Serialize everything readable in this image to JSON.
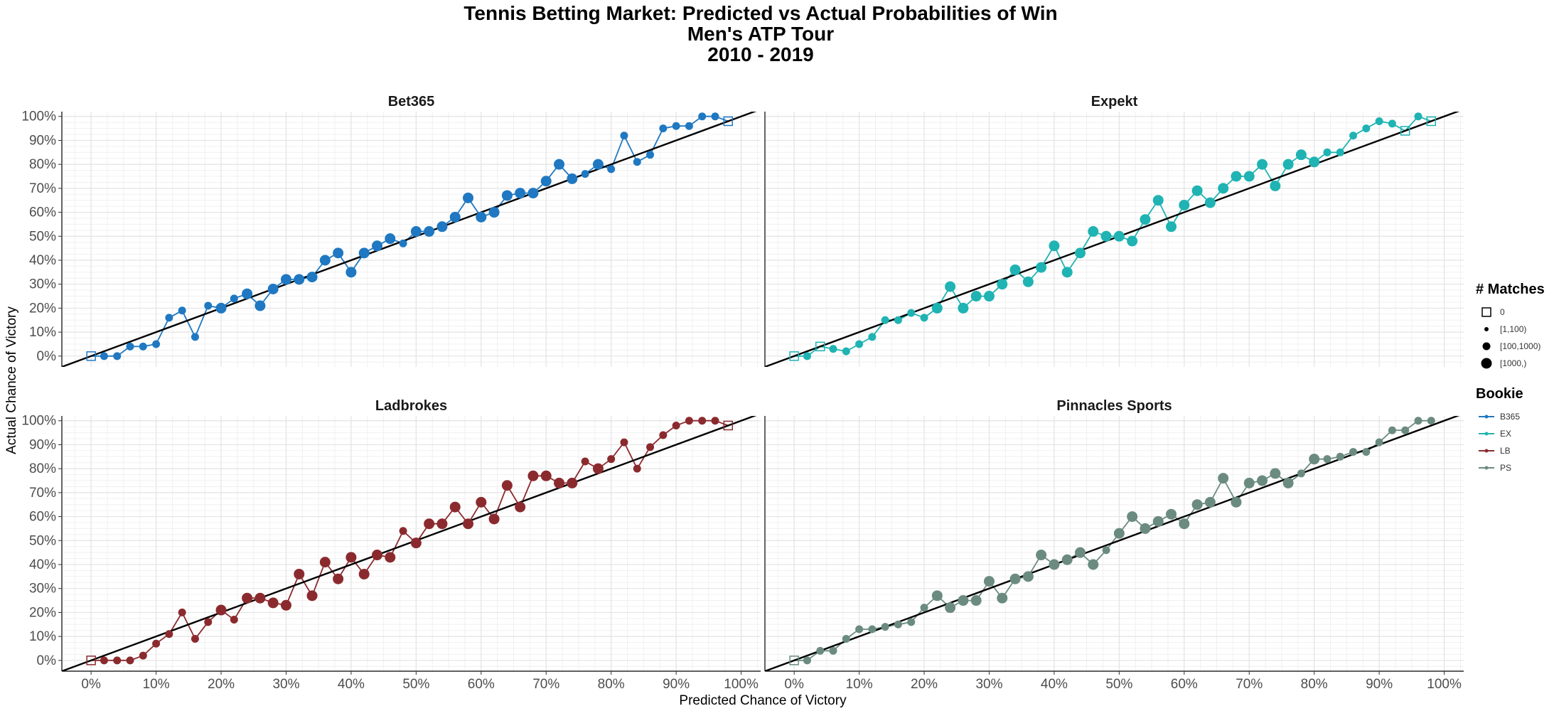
{
  "title": {
    "line1": "Tennis Betting Market: Predicted vs Actual Probabilities of Win",
    "line2": "Men's ATP Tour",
    "line3": "2010 - 2019"
  },
  "legend": {
    "size_title": "# Matches",
    "size_levels": [
      {
        "label": "0",
        "shape": "square"
      },
      {
        "label": "[1,100)",
        "shape": "small-dot"
      },
      {
        "label": "[100,1000)",
        "shape": "medium-dot"
      },
      {
        "label": "[1000,)",
        "shape": "large-dot"
      }
    ],
    "bookie_title": "Bookie",
    "bookies": [
      {
        "label": "B365",
        "color": "#1f78c1"
      },
      {
        "label": "EX",
        "color": "#1fb3b3"
      },
      {
        "label": "LB",
        "color": "#8b2a2e"
      },
      {
        "label": "PS",
        "color": "#6b8b80"
      }
    ]
  },
  "chart_data": {
    "type": "scatter",
    "xlabel": "Predicted Chance of Victory",
    "ylabel": "Actual Chance of Victory",
    "xlim": [
      0,
      100
    ],
    "ylim": [
      0,
      100
    ],
    "x_ticks": [
      "0%",
      "10%",
      "20%",
      "30%",
      "40%",
      "50%",
      "60%",
      "70%",
      "80%",
      "90%",
      "100%"
    ],
    "y_ticks": [
      "0%",
      "10%",
      "20%",
      "30%",
      "40%",
      "50%",
      "60%",
      "70%",
      "80%",
      "90%",
      "100%"
    ],
    "reference_line": "y = x",
    "grid": true,
    "x": [
      0,
      2,
      4,
      6,
      8,
      10,
      12,
      14,
      16,
      18,
      20,
      22,
      24,
      26,
      28,
      30,
      32,
      34,
      36,
      38,
      40,
      42,
      44,
      46,
      48,
      50,
      52,
      54,
      56,
      58,
      60,
      62,
      64,
      66,
      68,
      70,
      72,
      74,
      76,
      78,
      80,
      82,
      84,
      86,
      88,
      90,
      92,
      94,
      96,
      98
    ],
    "panels": [
      {
        "name": "Bet365",
        "bookie": "B365",
        "color": "#1f78c1",
        "y": [
          0,
          0,
          0,
          4,
          4,
          5,
          16,
          19,
          8,
          21,
          20,
          24,
          26,
          21,
          28,
          32,
          32,
          33,
          40,
          43,
          35,
          43,
          46,
          49,
          47,
          52,
          52,
          54,
          58,
          66,
          58,
          60,
          67,
          68,
          68,
          73,
          80,
          74,
          76,
          80,
          78,
          92,
          81,
          84,
          95,
          96,
          96,
          100,
          100,
          98
        ],
        "size": [
          0,
          1,
          1,
          1,
          1,
          1,
          1,
          1,
          1,
          1,
          2,
          1,
          2,
          2,
          2,
          2,
          2,
          2,
          2,
          2,
          2,
          2,
          2,
          2,
          1,
          2,
          2,
          2,
          2,
          2,
          2,
          2,
          2,
          2,
          2,
          2,
          2,
          2,
          1,
          2,
          1,
          1,
          1,
          1,
          1,
          1,
          1,
          1,
          1,
          0
        ]
      },
      {
        "name": "Expekt",
        "bookie": "EX",
        "color": "#1fb3b3",
        "y": [
          0,
          0,
          4,
          3,
          2,
          5,
          8,
          15,
          15,
          18,
          16,
          20,
          29,
          20,
          25,
          25,
          30,
          36,
          31,
          37,
          46,
          35,
          43,
          52,
          50,
          50,
          48,
          57,
          65,
          54,
          63,
          69,
          64,
          70,
          75,
          75,
          80,
          71,
          80,
          84,
          81,
          85,
          85,
          92,
          95,
          98,
          97,
          94,
          100,
          98
        ],
        "size": [
          0,
          1,
          0,
          1,
          1,
          1,
          1,
          1,
          1,
          1,
          1,
          2,
          2,
          2,
          2,
          2,
          2,
          2,
          2,
          2,
          2,
          2,
          2,
          2,
          2,
          2,
          2,
          2,
          2,
          2,
          2,
          2,
          2,
          2,
          2,
          2,
          2,
          2,
          2,
          2,
          2,
          1,
          1,
          1,
          1,
          1,
          1,
          0,
          1,
          0
        ]
      },
      {
        "name": "Ladbrokes",
        "bookie": "LB",
        "color": "#8b2a2e",
        "y": [
          0,
          0,
          0,
          0,
          2,
          7,
          11,
          20,
          9,
          16,
          21,
          17,
          26,
          26,
          24,
          23,
          36,
          27,
          41,
          34,
          43,
          36,
          44,
          43,
          54,
          49,
          57,
          57,
          64,
          57,
          66,
          59,
          73,
          64,
          77,
          77,
          74,
          74,
          83,
          80,
          84,
          91,
          80,
          89,
          94,
          98,
          100,
          100,
          100,
          98
        ],
        "size": [
          0,
          1,
          1,
          1,
          1,
          1,
          1,
          1,
          1,
          1,
          2,
          1,
          2,
          2,
          2,
          2,
          2,
          2,
          2,
          2,
          2,
          2,
          2,
          2,
          1,
          2,
          2,
          2,
          2,
          2,
          2,
          2,
          2,
          2,
          2,
          2,
          2,
          2,
          1,
          2,
          1,
          1,
          1,
          1,
          1,
          1,
          1,
          1,
          1,
          0
        ]
      },
      {
        "name": "Pinnacles Sports",
        "bookie": "PS",
        "color": "#6b8b80",
        "y": [
          0,
          0,
          4,
          4,
          9,
          13,
          13,
          14,
          15,
          16,
          22,
          27,
          22,
          25,
          25,
          33,
          26,
          34,
          35,
          44,
          40,
          42,
          45,
          40,
          46,
          53,
          60,
          55,
          58,
          61,
          57,
          65,
          66,
          76,
          66,
          74,
          75,
          78,
          74,
          78,
          84,
          84,
          85,
          87,
          87,
          91,
          96,
          96,
          100,
          100
        ],
        "size": [
          0,
          1,
          1,
          1,
          1,
          1,
          1,
          1,
          1,
          1,
          1,
          2,
          2,
          2,
          2,
          2,
          2,
          2,
          2,
          2,
          2,
          2,
          2,
          2,
          1,
          2,
          2,
          2,
          2,
          2,
          2,
          2,
          2,
          2,
          2,
          2,
          2,
          2,
          2,
          1,
          2,
          1,
          1,
          1,
          1,
          1,
          1,
          1,
          1,
          1
        ]
      }
    ]
  }
}
